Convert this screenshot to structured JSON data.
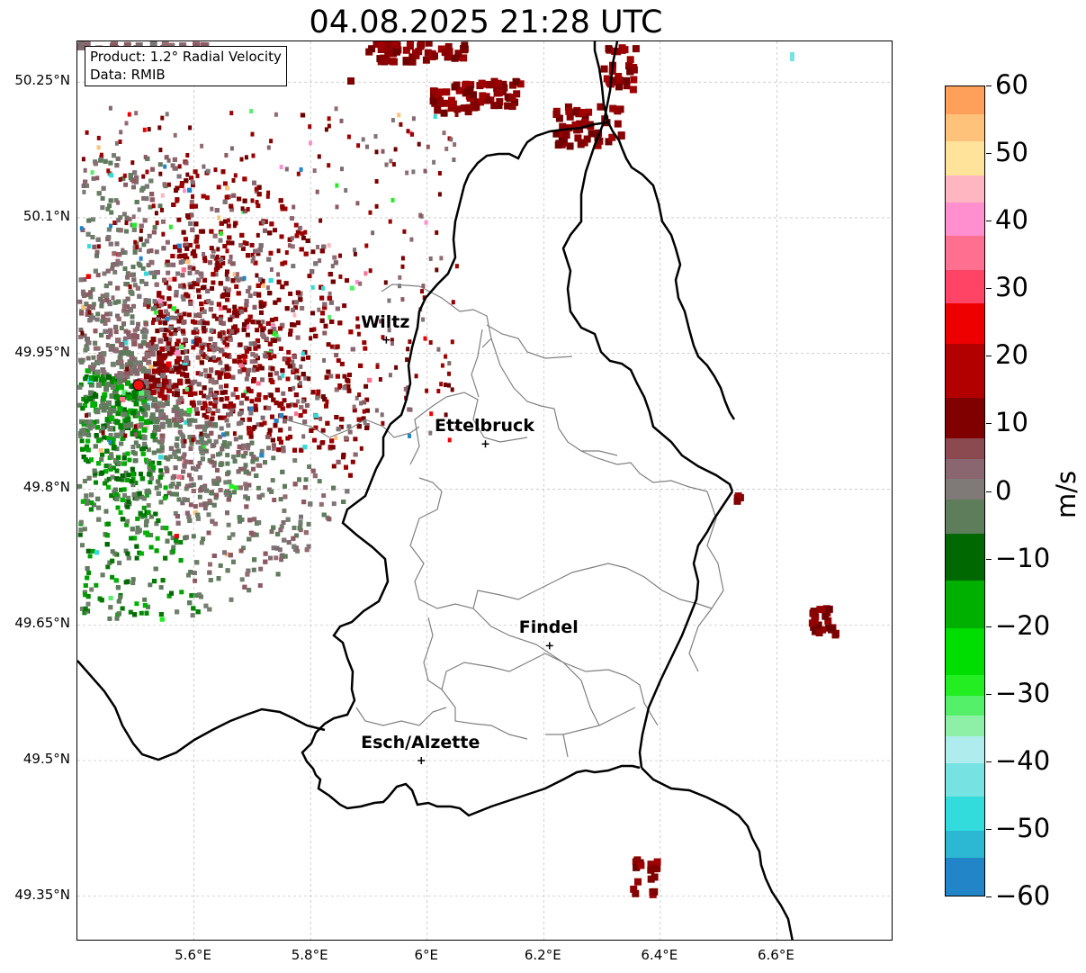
{
  "title": "04.08.2025 21:28 UTC",
  "info_box": {
    "line1": "Product: 1.2° Radial Velocity",
    "line2": "Data: RMIB"
  },
  "lat_ticks": [
    "50.25°N",
    "50.1°N",
    "49.95°N",
    "49.8°N",
    "49.65°N",
    "49.5°N",
    "49.35°N"
  ],
  "lon_ticks": [
    "5.6°E",
    "5.8°E",
    "6°E",
    "6.2°E",
    "6.4°E",
    "6.6°E"
  ],
  "cities": [
    {
      "name": "Wiltz",
      "lon": 5.93,
      "lat": 49.965
    },
    {
      "name": "Ettelbruck",
      "lon": 6.1,
      "lat": 49.85
    },
    {
      "name": "Findel",
      "lon": 6.21,
      "lat": 49.627
    },
    {
      "name": "Esch/Alzette",
      "lon": 5.99,
      "lat": 49.5
    }
  ],
  "radar_site": {
    "lon": 5.505,
    "lat": 49.915,
    "color": "#ee1111"
  },
  "colorbar": {
    "label": "m/s",
    "min": -60,
    "max": 60,
    "tick_labels": [
      "60",
      "50",
      "40",
      "30",
      "20",
      "10",
      "0",
      "−10",
      "−20",
      "−30",
      "−40",
      "−50",
      "−60"
    ],
    "stops": [
      {
        "from": -60,
        "to": -54,
        "color": "#2285c8"
      },
      {
        "from": -54,
        "to": -50,
        "color": "#2cb8d2"
      },
      {
        "from": -50,
        "to": -45,
        "color": "#33dcdc"
      },
      {
        "from": -45,
        "to": -40,
        "color": "#77e2e2"
      },
      {
        "from": -40,
        "to": -36,
        "color": "#aeeced"
      },
      {
        "from": -36,
        "to": -33,
        "color": "#8ef0a6"
      },
      {
        "from": -33,
        "to": -30,
        "color": "#55f06a"
      },
      {
        "from": -30,
        "to": -27,
        "color": "#22ee22"
      },
      {
        "from": -27,
        "to": -20,
        "color": "#00dd00"
      },
      {
        "from": -20,
        "to": -13,
        "color": "#00b000"
      },
      {
        "from": -13,
        "to": -6,
        "color": "#006800"
      },
      {
        "from": -6,
        "to": -1,
        "color": "#5d7d5b"
      },
      {
        "from": -1,
        "to": 2,
        "color": "#7f7a78"
      },
      {
        "from": 2,
        "to": 5,
        "color": "#8a6670"
      },
      {
        "from": 5,
        "to": 8,
        "color": "#8a4a50"
      },
      {
        "from": 8,
        "to": 14,
        "color": "#800000"
      },
      {
        "from": 14,
        "to": 22,
        "color": "#b20000"
      },
      {
        "from": 22,
        "to": 28,
        "color": "#ee0000"
      },
      {
        "from": 28,
        "to": 33,
        "color": "#ff4466"
      },
      {
        "from": 33,
        "to": 38,
        "color": "#ff6f8f"
      },
      {
        "from": 38,
        "to": 43,
        "color": "#ff8fce"
      },
      {
        "from": 43,
        "to": 47,
        "color": "#ffb6c1"
      },
      {
        "from": 47,
        "to": 52,
        "color": "#ffe39a"
      },
      {
        "from": 52,
        "to": 56,
        "color": "#ffc27a"
      },
      {
        "from": 56,
        "to": 60,
        "color": "#ffa05a"
      }
    ]
  },
  "colors": {
    "border": "#000000",
    "canton": "#808080",
    "grid": "#b0b0b0",
    "inbound": "#007a00",
    "zero": "#7f7a78",
    "outbound": "#800000"
  }
}
